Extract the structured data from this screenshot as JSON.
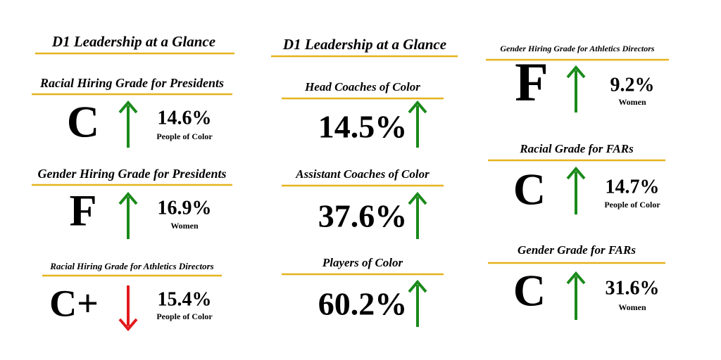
{
  "columns": [
    {
      "title": "D1 Leadership at a Glance",
      "items": [
        {
          "heading": "Racial Hiring Grade for Presidents",
          "grade": "C",
          "value": "14.6%",
          "sublabel": "People of Color",
          "trend": "up"
        },
        {
          "heading": "Gender Hiring Grade for Presidents",
          "grade": "F",
          "value": "16.9%",
          "sublabel": "Women",
          "trend": "up"
        },
        {
          "heading": "Racial Hiring Grade for Athletics Directors",
          "grade": "C+",
          "value": "15.4%",
          "sublabel": "People of Color",
          "trend": "down"
        }
      ]
    },
    {
      "title": "D1 Leadership at a Glance",
      "items": [
        {
          "heading": "Head Coaches of Color",
          "value": "14.5%",
          "trend": "up"
        },
        {
          "heading": "Assistant Coaches of Color",
          "value": "37.6%",
          "trend": "up"
        },
        {
          "heading": "Players of Color",
          "value": "60.2%",
          "trend": "up"
        }
      ]
    },
    {
      "items": [
        {
          "heading": "Gender Hiring Grade for Athletics Directors",
          "grade": "F",
          "value": "9.2%",
          "sublabel": "Women",
          "trend": "up"
        },
        {
          "heading": "Racial Grade for FARs",
          "grade": "C",
          "value": "14.7%",
          "sublabel": "People of Color",
          "trend": "up"
        },
        {
          "heading": "Gender Grade for FARs",
          "grade": "C",
          "value": "31.6%",
          "sublabel": "Women",
          "trend": "up"
        }
      ]
    }
  ]
}
